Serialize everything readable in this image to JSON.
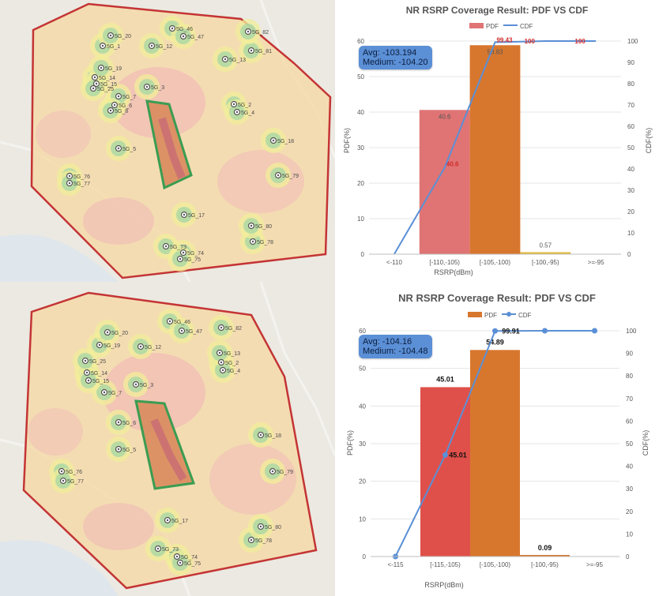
{
  "top": {
    "map": {
      "site_labels": [
        "5G_1",
        "5G_2",
        "5G_3",
        "5G_4",
        "5G_5",
        "5G_6",
        "5G_7",
        "5G_8",
        "5G_12",
        "5G_13",
        "5G_14",
        "5G_15",
        "5G_17",
        "5G_18",
        "5G_19",
        "5G_20",
        "5G_25",
        "5G_46",
        "5G_47",
        "5G_73",
        "5G_74",
        "5G_75",
        "5G_76",
        "5G_77",
        "5G_78",
        "5G_79",
        "5G_80",
        "5G_81",
        "5G_82"
      ]
    },
    "stats": {
      "avg": "Avg: -103.194",
      "median": "Medium: -104.20"
    },
    "chart_data": {
      "type": "bar",
      "title": "NR RSRP Coverage Result: PDF VS CDF",
      "legend": [
        "PDF",
        "CDF"
      ],
      "categories": [
        "<-110",
        "[-110,-105)",
        "[-105,-100)",
        "[-100,-95)",
        ">=-95"
      ],
      "pdf": [
        0,
        40.6,
        58.83,
        0.57,
        0
      ],
      "pdf_labels": [
        "",
        "40.6",
        "58.83",
        "0.57",
        ""
      ],
      "cdf": [
        0,
        40.6,
        99.43,
        100,
        100
      ],
      "cdf_labels": [
        "",
        "40.6",
        "99.43",
        "100",
        "100"
      ],
      "xlabel": "RSRP(dBm)",
      "ylabel": "PDF(%)",
      "y2label": "CDF(%)",
      "ylim": [
        0,
        60
      ],
      "y2lim": [
        0,
        100
      ],
      "yticks": [
        "0",
        "10",
        "20",
        "30",
        "40",
        "50",
        "60"
      ],
      "y2ticks": [
        "0",
        "10",
        "20",
        "30",
        "40",
        "50",
        "60",
        "70",
        "80",
        "90",
        "100"
      ]
    }
  },
  "bottom": {
    "map": {
      "site_labels": [
        "5G_2",
        "5G_3",
        "5G_4",
        "5G_5",
        "5G_6",
        "5G_7",
        "5G_12",
        "5G_13",
        "5G_14",
        "5G_15",
        "5G_17",
        "5G_18",
        "5G_19",
        "5G_20",
        "5G_25",
        "5G_46",
        "5G_47",
        "5G_73",
        "5G_74",
        "5G_75",
        "5G_76",
        "5G_77",
        "5G_78",
        "5G_79",
        "5G_80",
        "5G_82"
      ]
    },
    "stats": {
      "avg": "Avg: -104.16",
      "median": "Medium: -104.48"
    },
    "chart_data": {
      "type": "bar",
      "title": "NR RSRP Coverage Result: PDF VS CDF",
      "legend": [
        "PDF",
        "CDF"
      ],
      "categories": [
        "<-115",
        "[-115,-105)",
        "[-105,-100)",
        "[-100,-95)",
        ">=-95"
      ],
      "pdf": [
        0,
        45.01,
        54.89,
        0.09,
        0
      ],
      "pdf_labels": [
        "",
        "45.01",
        "54.89",
        "0.09",
        ""
      ],
      "cdf": [
        0,
        45.01,
        99.91,
        100,
        100
      ],
      "cdf_labels": [
        "",
        "45.01",
        "99.91",
        "",
        ""
      ],
      "xlabel": "RSRP(dBm)",
      "ylabel": "PDF(%)",
      "y2label": "CDF(%)",
      "ylim": [
        0,
        60
      ],
      "y2lim": [
        0,
        100
      ],
      "yticks": [
        "0",
        "10",
        "20",
        "30",
        "40",
        "50",
        "60"
      ],
      "y2ticks": [
        "0",
        "10",
        "20",
        "30",
        "40",
        "50",
        "60",
        "70",
        "80",
        "90",
        "100"
      ]
    }
  }
}
